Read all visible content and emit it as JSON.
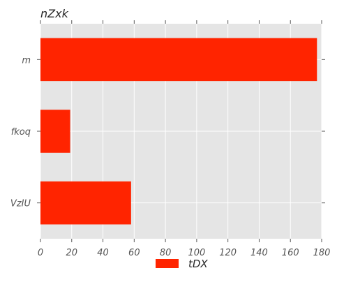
{
  "chart_data": {
    "type": "bar",
    "orientation": "horizontal",
    "title": "nZxk",
    "xlabel": "",
    "ylabel": "",
    "categories": [
      "m",
      "fkoq",
      "VzIU"
    ],
    "series": [
      {
        "name": "tDX",
        "values": [
          177,
          19,
          58
        ],
        "color": "#ff2400"
      }
    ],
    "xlim": [
      0,
      180
    ],
    "xticks": [
      "0",
      "20",
      "40",
      "60",
      "80",
      "100",
      "120",
      "140",
      "160",
      "180"
    ],
    "grid": true,
    "legend_position": "bottom-center",
    "colors": {
      "plot_background": "#e5e5e5",
      "grid": "#ffffff",
      "bar": "#ff2400"
    }
  }
}
